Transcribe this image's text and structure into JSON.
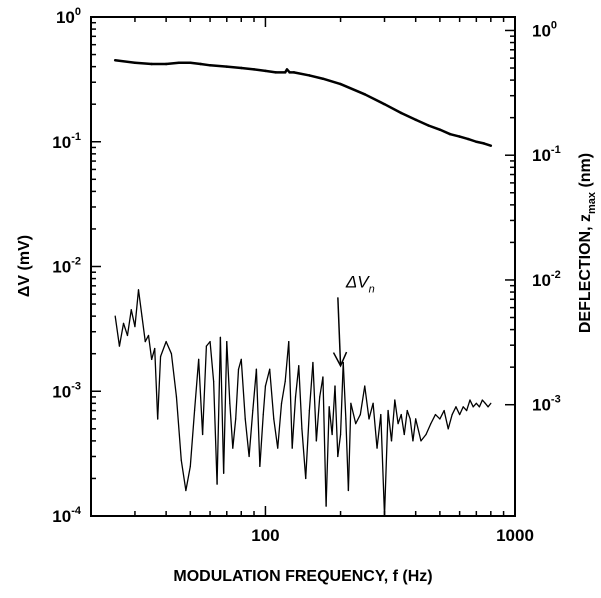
{
  "chart_data": {
    "type": "line",
    "title": "",
    "xlabel": "MODULATION FREQUENCY, f (Hz)",
    "ylabel_left_main": "ΔV (mV)",
    "ylabel_right_main": "DEFLECTION, z",
    "ylabel_right_sub": "max",
    "ylabel_right_unit": " (nm)",
    "x_scale": "log",
    "y_scale": "log",
    "xlim": [
      20,
      1000
    ],
    "ylim": [
      0.0001,
      1
    ],
    "grid": false,
    "x_ticks": [
      {
        "value": 100,
        "label": "100"
      },
      {
        "value": 1000,
        "label": "1000"
      }
    ],
    "y_ticks_left": [
      {
        "value": 1,
        "base": "10",
        "exp": "0"
      },
      {
        "value": 0.1,
        "base": "10",
        "exp": "-1"
      },
      {
        "value": 0.01,
        "base": "10",
        "exp": "-2"
      },
      {
        "value": 0.001,
        "base": "10",
        "exp": "-3"
      },
      {
        "value": 0.0001,
        "base": "10",
        "exp": "-4"
      }
    ],
    "y_ticks_right": [
      {
        "value": 0.78,
        "base": "10",
        "exp": "0"
      },
      {
        "value": 0.078,
        "base": "10",
        "exp": "-1"
      },
      {
        "value": 0.0078,
        "base": "10",
        "exp": "-2"
      },
      {
        "value": 0.00078,
        "base": "10",
        "exp": "-3"
      }
    ],
    "annotation": {
      "main": "ΔV",
      "sub": "n",
      "x": 210,
      "y": 0.0068,
      "arrow_to": [
        200,
        0.0016
      ]
    },
    "series": [
      {
        "name": "",
        "color": "#000000",
        "style": "smooth",
        "x": [
          25,
          30,
          35,
          40,
          45,
          50,
          55,
          60,
          70,
          80,
          90,
          100,
          110,
          120,
          122,
          125,
          130,
          150,
          170,
          200,
          250,
          300,
          350,
          400,
          450,
          500,
          550,
          600,
          650,
          700,
          750,
          800
        ],
        "y": [
          0.45,
          0.43,
          0.42,
          0.42,
          0.43,
          0.43,
          0.42,
          0.41,
          0.4,
          0.39,
          0.38,
          0.37,
          0.36,
          0.36,
          0.38,
          0.36,
          0.36,
          0.34,
          0.32,
          0.29,
          0.24,
          0.2,
          0.17,
          0.15,
          0.135,
          0.125,
          0.115,
          0.11,
          0.105,
          0.1,
          0.097,
          0.093
        ]
      },
      {
        "name": "ΔVn",
        "color": "#000000",
        "style": "noisy",
        "x": [
          25,
          26,
          27,
          28,
          29,
          30,
          31,
          32,
          33,
          34,
          35,
          36,
          37,
          38,
          40,
          42,
          44,
          46,
          48,
          50,
          52,
          54,
          56,
          58,
          60,
          62,
          64,
          66,
          68,
          70,
          72,
          74,
          76,
          78,
          80,
          83,
          86,
          89,
          92,
          95,
          98,
          100,
          104,
          108,
          112,
          116,
          120,
          124,
          128,
          132,
          136,
          140,
          145,
          150,
          155,
          160,
          165,
          170,
          175,
          180,
          185,
          190,
          195,
          200,
          205,
          210,
          215,
          220,
          230,
          240,
          250,
          260,
          270,
          280,
          290,
          300,
          310,
          320,
          330,
          340,
          350,
          360,
          370,
          380,
          390,
          400,
          420,
          440,
          460,
          480,
          500,
          520,
          540,
          560,
          580,
          600,
          620,
          640,
          660,
          680,
          700,
          720,
          740,
          760,
          780,
          800
        ],
        "y": [
          0.004,
          0.0023,
          0.0035,
          0.0028,
          0.0045,
          0.0033,
          0.0065,
          0.004,
          0.0025,
          0.0028,
          0.0018,
          0.0022,
          0.0006,
          0.0019,
          0.0025,
          0.002,
          0.0009,
          0.00028,
          0.00016,
          0.00025,
          0.0007,
          0.0018,
          0.00045,
          0.0023,
          0.0025,
          0.0012,
          0.00018,
          0.0027,
          0.00022,
          0.0025,
          0.0008,
          0.00035,
          0.0006,
          0.0015,
          0.0018,
          0.0006,
          0.0003,
          0.0007,
          0.0015,
          0.00025,
          0.00065,
          0.0011,
          0.0015,
          0.0006,
          0.00035,
          0.0008,
          0.0012,
          0.0025,
          0.00035,
          0.0009,
          0.0016,
          0.0005,
          0.0002,
          0.0007,
          0.0017,
          0.0004,
          0.0009,
          0.0013,
          0.00012,
          0.00075,
          0.00045,
          0.0011,
          0.0003,
          0.00045,
          0.0017,
          0.0006,
          0.00016,
          0.0008,
          0.00055,
          0.00065,
          0.0011,
          0.0006,
          0.0008,
          0.00035,
          0.00065,
          0.0001,
          0.0007,
          0.0004,
          0.00085,
          0.00055,
          0.00065,
          0.00045,
          0.0007,
          0.0006,
          0.0004,
          0.0006,
          0.0004,
          0.00045,
          0.00055,
          0.00065,
          0.0006,
          0.0007,
          0.0005,
          0.00065,
          0.00075,
          0.00065,
          0.00075,
          0.0007,
          0.00085,
          0.00075,
          0.0008,
          0.00075,
          0.00085,
          0.0008,
          0.00075,
          0.0008
        ]
      }
    ]
  }
}
